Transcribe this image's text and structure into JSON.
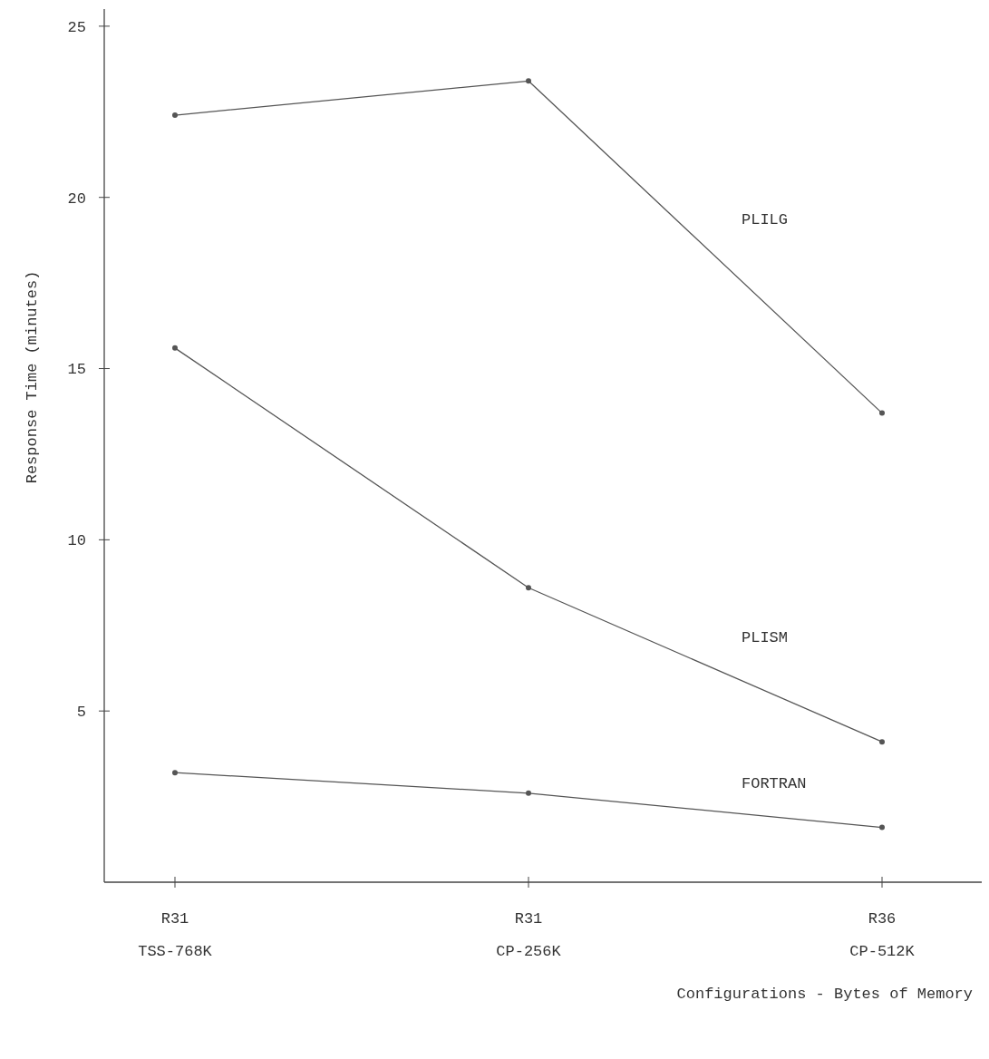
{
  "chart_data": {
    "type": "line",
    "xlabel": "Configurations - Bytes of Memory",
    "ylabel": "Response Time (minutes)",
    "categories": [
      "R31\nTSS-768K",
      "R31\nCP-256K",
      "R36\nCP-512K"
    ],
    "series": [
      {
        "name": "PLILG",
        "color": "#555555",
        "values": [
          22.4,
          23.4,
          13.7
        ]
      },
      {
        "name": "PLISM",
        "color": "#555555",
        "values": [
          15.6,
          8.6,
          4.1
        ]
      },
      {
        "name": "FORTRAN",
        "color": "#555555",
        "values": [
          3.2,
          2.6,
          1.6
        ]
      }
    ],
    "ylim": [
      0,
      25.5
    ],
    "yticks": [
      5,
      10,
      15,
      20,
      25
    ],
    "marker": "circle",
    "line_style": "solid"
  }
}
